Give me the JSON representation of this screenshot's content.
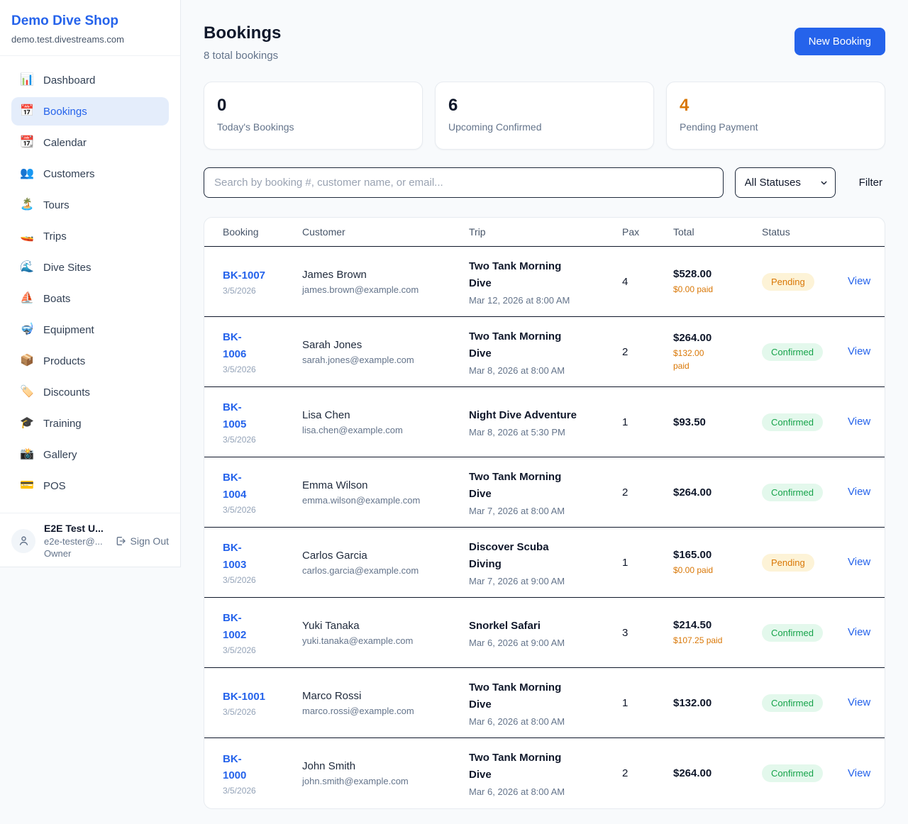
{
  "sidebar": {
    "brand": {
      "name": "Demo Dive Shop",
      "domain": "demo.test.divestreams.com"
    },
    "items": [
      {
        "label": "Dashboard",
        "emoji": "📊",
        "icon_name": "bar-chart-icon",
        "active": false
      },
      {
        "label": "Bookings",
        "emoji": "📅",
        "icon_name": "calendar-icon",
        "active": true
      },
      {
        "label": "Calendar",
        "emoji": "📆",
        "icon_name": "tear-off-calendar-icon",
        "active": false
      },
      {
        "label": "Customers",
        "emoji": "👥",
        "icon_name": "people-icon",
        "active": false
      },
      {
        "label": "Tours",
        "emoji": "🏝️",
        "icon_name": "island-icon",
        "active": false
      },
      {
        "label": "Trips",
        "emoji": "🚤",
        "icon_name": "speedboat-icon",
        "active": false
      },
      {
        "label": "Dive Sites",
        "emoji": "🌊",
        "icon_name": "wave-icon",
        "active": false
      },
      {
        "label": "Boats",
        "emoji": "⛵",
        "icon_name": "sailboat-icon",
        "active": false
      },
      {
        "label": "Equipment",
        "emoji": "🤿",
        "icon_name": "diving-mask-icon",
        "active": false
      },
      {
        "label": "Products",
        "emoji": "📦",
        "icon_name": "package-icon",
        "active": false
      },
      {
        "label": "Discounts",
        "emoji": "🏷️",
        "icon_name": "tag-icon",
        "active": false
      },
      {
        "label": "Training",
        "emoji": "🎓",
        "icon_name": "graduation-cap-icon",
        "active": false
      },
      {
        "label": "Gallery",
        "emoji": "📸",
        "icon_name": "camera-icon",
        "active": false
      },
      {
        "label": "POS",
        "emoji": "💳",
        "icon_name": "credit-card-icon",
        "active": false
      }
    ],
    "user": {
      "name": "E2E Test U...",
      "email": "e2e-tester@...",
      "role": "Owner",
      "sign_out_label": "Sign Out"
    }
  },
  "header": {
    "title": "Bookings",
    "subtitle": "8 total bookings",
    "new_booking_label": "New Booking"
  },
  "stats": [
    {
      "value": "0",
      "label": "Today's Bookings",
      "accent": "dark"
    },
    {
      "value": "6",
      "label": "Upcoming Confirmed",
      "accent": "dark"
    },
    {
      "value": "4",
      "label": "Pending Payment",
      "accent": "orange"
    }
  ],
  "filters": {
    "search_placeholder": "Search by booking #, customer name, or email...",
    "status_selected": "All Statuses",
    "filter_label": "Filter"
  },
  "table": {
    "columns": [
      "Booking",
      "Customer",
      "Trip",
      "Pax",
      "Total",
      "Status"
    ],
    "view_label": "View",
    "rows": [
      {
        "booking": "BK-1007",
        "date": "3/5/2026",
        "customer": "James Brown",
        "email": "james.brown@example.com",
        "trip": "Two Tank Morning\nDive",
        "trip_time": "Mar 12, 2026 at 8:00 AM",
        "pax": "4",
        "total": "$528.00",
        "paid": "$0.00 paid",
        "status": "Pending"
      },
      {
        "booking": "BK-\n1006",
        "date": "3/5/2026",
        "customer": "Sarah Jones",
        "email": "sarah.jones@example.com",
        "trip": "Two Tank Morning\nDive",
        "trip_time": "Mar 8, 2026 at 8:00 AM",
        "pax": "2",
        "total": "$264.00",
        "paid": "$132.00\npaid",
        "status": "Confirmed"
      },
      {
        "booking": "BK-\n1005",
        "date": "3/5/2026",
        "customer": "Lisa Chen",
        "email": "lisa.chen@example.com",
        "trip": "Night Dive Adventure",
        "trip_time": "Mar 8, 2026 at 5:30 PM",
        "pax": "1",
        "total": "$93.50",
        "paid": "",
        "status": "Confirmed"
      },
      {
        "booking": "BK-\n1004",
        "date": "3/5/2026",
        "customer": "Emma Wilson",
        "email": "emma.wilson@example.com",
        "trip": "Two Tank Morning\nDive",
        "trip_time": "Mar 7, 2026 at 8:00 AM",
        "pax": "2",
        "total": "$264.00",
        "paid": "",
        "status": "Confirmed"
      },
      {
        "booking": "BK-\n1003",
        "date": "3/5/2026",
        "customer": "Carlos Garcia",
        "email": "carlos.garcia@example.com",
        "trip": "Discover Scuba\nDiving",
        "trip_time": "Mar 7, 2026 at 9:00 AM",
        "pax": "1",
        "total": "$165.00",
        "paid": "$0.00 paid",
        "status": "Pending"
      },
      {
        "booking": "BK-\n1002",
        "date": "3/5/2026",
        "customer": "Yuki Tanaka",
        "email": "yuki.tanaka@example.com",
        "trip": "Snorkel Safari",
        "trip_time": "Mar 6, 2026 at 9:00 AM",
        "pax": "3",
        "total": "$214.50",
        "paid": "$107.25 paid",
        "status": "Confirmed"
      },
      {
        "booking": "BK-1001",
        "date": "3/5/2026",
        "customer": "Marco Rossi",
        "email": "marco.rossi@example.com",
        "trip": "Two Tank Morning\nDive",
        "trip_time": "Mar 6, 2026 at 8:00 AM",
        "pax": "1",
        "total": "$132.00",
        "paid": "",
        "status": "Confirmed"
      },
      {
        "booking": "BK-\n1000",
        "date": "3/5/2026",
        "customer": "John Smith",
        "email": "john.smith@example.com",
        "trip": "Two Tank Morning\nDive",
        "trip_time": "Mar 6, 2026 at 8:00 AM",
        "pax": "2",
        "total": "$264.00",
        "paid": "",
        "status": "Confirmed"
      }
    ]
  },
  "colors": {
    "accent_blue": "#2563eb",
    "pending_text": "#d97706",
    "pending_bg": "#fdf3d7",
    "confirmed_text": "#16a34a",
    "confirmed_bg": "#e3f8ec",
    "page_bg": "#f8fafc"
  }
}
